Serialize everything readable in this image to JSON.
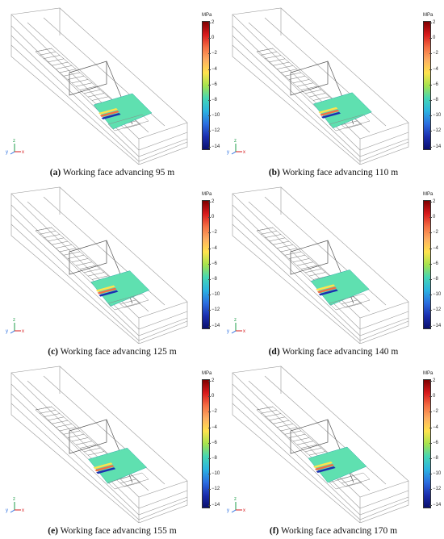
{
  "colorbar": {
    "unit": "MPa",
    "ticks": [
      "2",
      "0",
      "−2",
      "−4",
      "−6",
      "−8",
      "−10",
      "−12",
      "−14"
    ],
    "colors": [
      "#7f0000",
      "#d7191c",
      "#f46d43",
      "#fdae61",
      "#ffe34d",
      "#a6e34d",
      "#45d6b4",
      "#2bb3e0",
      "#2b6fe0",
      "#1b2fb0",
      "#0a0f6e"
    ]
  },
  "axes": {
    "x": "x",
    "y": "y",
    "z": "z"
  },
  "panels": [
    {
      "tag": "(a)",
      "text": "Working face advancing 95 m",
      "advance_m": 95
    },
    {
      "tag": "(b)",
      "text": "Working face advancing 110 m",
      "advance_m": 110
    },
    {
      "tag": "(c)",
      "text": "Working face advancing 125 m",
      "advance_m": 125
    },
    {
      "tag": "(d)",
      "text": "Working face advancing 140 m",
      "advance_m": 140
    },
    {
      "tag": "(e)",
      "text": "Working face advancing 155 m",
      "advance_m": 155
    },
    {
      "tag": "(f)",
      "text": "Working face advancing 170 m",
      "advance_m": 170
    }
  ]
}
